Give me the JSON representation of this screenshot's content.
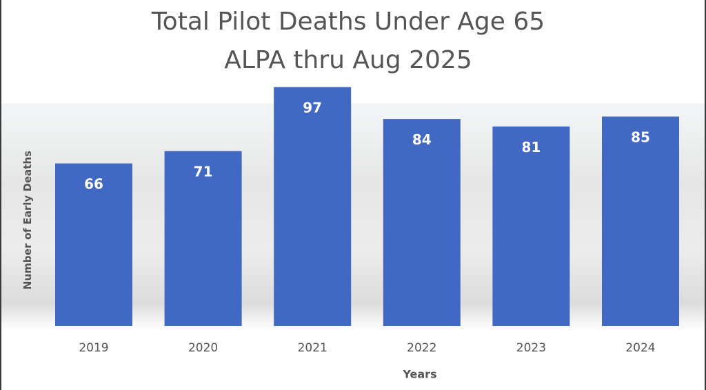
{
  "chart_data": {
    "type": "bar",
    "title": "Total Pilot Deaths Under Age 65",
    "subtitle": "ALPA thru Aug 2025",
    "xlabel": "Years",
    "ylabel": "Number of Early Deaths",
    "categories": [
      "2019",
      "2020",
      "2021",
      "2022",
      "2023",
      "2024"
    ],
    "values": [
      66,
      71,
      97,
      84,
      81,
      85
    ],
    "ylim": [
      0,
      110
    ],
    "grid": false,
    "legend": "none",
    "data_labels": true,
    "colors": {
      "bar": "#4169c4",
      "label": "#ffffff",
      "text": "#555555"
    }
  }
}
